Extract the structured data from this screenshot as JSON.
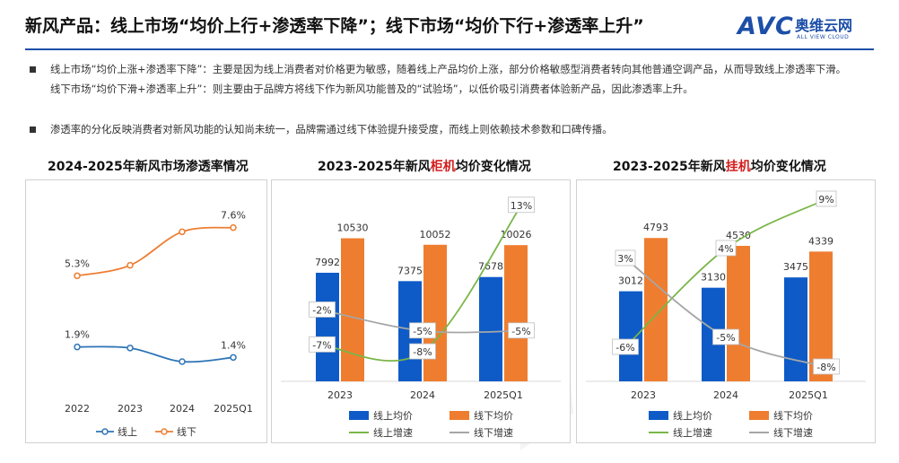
{
  "header": {
    "title": "新风产品：线上市场“均价上行+渗透率下降”；线下市场“均价下行+渗透率上升”",
    "logo_en": "AVC",
    "logo_cn": "奥维云网",
    "logo_sub": "ALL VIEW CLOUD"
  },
  "bullets": [
    "线上市场“均价上涨+渗透率下降”：主要是因为线上消费者对价格更为敏感，随着线上产品均价上涨，部分价格敏感型消费者转向其他普通空调产品，从而导致线上渗透率下滑。线下市场“均价下滑+渗透率上升”：则主要由于品牌方将线下作为新风功能普及的“试验场”，以低价吸引消费者体验新产品，因此渗透率上升。",
    "渗透率的分化反映消费者对新风功能的认知尚未统一，品牌需通过线下体验提升接受度，而线上则依赖技术参数和口碑传播。"
  ],
  "chart_data": [
    {
      "type": "line",
      "title": "2024-2025年新风市场渗透率情况",
      "x": [
        "2022",
        "2023",
        "2024",
        "2025Q1"
      ],
      "series": [
        {
          "name": "线上",
          "values": [
            1.9,
            1.85,
            1.2,
            1.4
          ],
          "labels": [
            "1.9%",
            "",
            "",
            "1.4%"
          ],
          "color": "#2e75b6"
        },
        {
          "name": "线下",
          "values": [
            5.3,
            5.8,
            7.4,
            7.6
          ],
          "labels": [
            "5.3%",
            "",
            "",
            "7.6%"
          ],
          "color": "#ed7d31"
        }
      ],
      "ylim": [
        0,
        9
      ]
    },
    {
      "type": "bar",
      "title_pre": "2023-2025年新风",
      "title_hl": "柜机",
      "title_post": "均价变化情况",
      "categories": [
        "2023",
        "2024",
        "2025Q1"
      ],
      "series": [
        {
          "name": "线上均价",
          "values": [
            7992,
            7375,
            7678
          ],
          "color": "#0e5bc8"
        },
        {
          "name": "线下均价",
          "values": [
            10530,
            10052,
            10026
          ],
          "color": "#ef7d2f"
        }
      ],
      "lines": [
        {
          "name": "线上增速",
          "values": [
            -7,
            -8,
            13
          ],
          "labels": [
            "-7%",
            "-8%",
            "13%"
          ],
          "color": "#7ab648"
        },
        {
          "name": "线下增速",
          "values": [
            -2,
            -5,
            -5
          ],
          "labels": [
            "-2%",
            "-5%",
            "-5%"
          ],
          "color": "#a6a6a6"
        }
      ],
      "ylim": [
        0,
        14000
      ],
      "rate_lim": [
        -13,
        14
      ]
    },
    {
      "type": "bar",
      "title_pre": "2023-2025年新风",
      "title_hl": "挂机",
      "title_post": "均价变化情况",
      "categories": [
        "2023",
        "2024",
        "2025Q1"
      ],
      "series": [
        {
          "name": "线上均价",
          "values": [
            3012,
            3130,
            3475
          ],
          "color": "#0e5bc8"
        },
        {
          "name": "线下均价",
          "values": [
            4793,
            4530,
            4339
          ],
          "color": "#ef7d2f"
        }
      ],
      "lines": [
        {
          "name": "线上增速",
          "values": [
            -6,
            4,
            9
          ],
          "labels": [
            "-6%",
            "4%",
            "9%"
          ],
          "color": "#7ab648"
        },
        {
          "name": "线下增速",
          "values": [
            3,
            -5,
            -8
          ],
          "labels": [
            "3%",
            "-5%",
            "-8%"
          ],
          "color": "#a6a6a6"
        }
      ],
      "ylim": [
        0,
        6000
      ],
      "rate_lim": [
        -10,
        10
      ]
    }
  ]
}
